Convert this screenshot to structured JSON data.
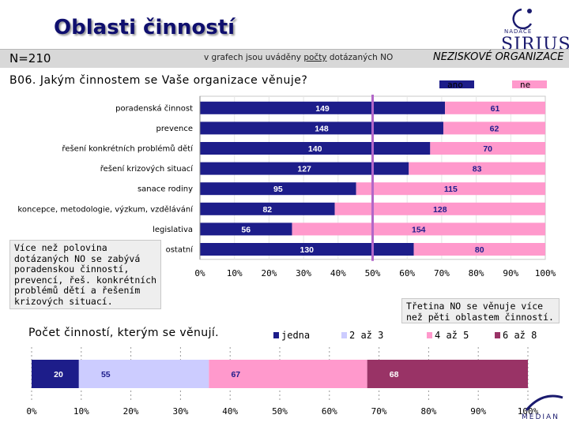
{
  "title": "Oblasti činností",
  "sample_size": "N=210",
  "note": {
    "prefix": "v grafech jsou uváděny ",
    "underlined": "počty",
    "suffix": " dotázaných NO"
  },
  "segment": "NEZISKOVÉ ORGANIZACE",
  "logo": {
    "org": "NADACE",
    "brand": "SIRIUS"
  },
  "question": "B06. Jakým činnostem se Vaše organizace věnuje?",
  "left_box_lines": [
    "Více než polovina",
    "dotázaných NO se zabývá",
    "poradenskou činností,",
    "prevencí, řeš. konkrétních",
    "problémů dětí a řešením",
    "krizových situací."
  ],
  "right_box_lines": [
    "Třetina NO se věnuje více",
    "než pěti oblastem činností."
  ],
  "subchart_title": "Počet činností, kterým se věnují.",
  "median_logo": "MEDIAN",
  "colors": {
    "navy": "#1d1d8a",
    "pink": "#ff99cc",
    "lavender": "#ccccff",
    "magenta": "#ff66cc",
    "plum": "#993366",
    "header_bar": "#d8d8d8"
  },
  "chart_data": [
    {
      "type": "bar",
      "orientation": "horizontal",
      "stacked": true,
      "percent_scale": true,
      "categories": [
        "poradenská činnost",
        "prevence",
        "řešení konkrétních problémů dětí",
        "řešení krizových situací",
        "sanace rodiny",
        "koncepce, metodologie, výzkum, vzdělávání",
        "legislativa",
        "ostatní"
      ],
      "series": [
        {
          "name": "ano",
          "color": "#1d1d8a",
          "values": [
            149,
            148,
            140,
            127,
            95,
            82,
            56,
            130
          ]
        },
        {
          "name": "ne",
          "color": "#ff99cc",
          "values": [
            61,
            62,
            70,
            83,
            115,
            128,
            154,
            80
          ]
        }
      ],
      "xticks": [
        "0%",
        "10%",
        "20%",
        "30%",
        "40%",
        "50%",
        "60%",
        "70%",
        "80%",
        "90%",
        "100%"
      ],
      "reference_line": "50%",
      "legend_position": "top-right"
    },
    {
      "type": "bar",
      "orientation": "horizontal",
      "stacked": true,
      "percent_scale": true,
      "categories": [
        ""
      ],
      "series": [
        {
          "name": "jedna",
          "color": "#1d1d8a",
          "values": [
            20
          ]
        },
        {
          "name": "2 až 3",
          "color": "#ccccff",
          "values": [
            55
          ]
        },
        {
          "name": "4 až 5",
          "color": "#ff99cc",
          "values": [
            67
          ]
        },
        {
          "name": "6 až 8",
          "color": "#993366",
          "values": [
            68
          ]
        }
      ],
      "xticks": [
        "0%",
        "10%",
        "20%",
        "30%",
        "40%",
        "50%",
        "60%",
        "70%",
        "80%",
        "90%",
        "100%"
      ],
      "legend_position": "top"
    }
  ]
}
